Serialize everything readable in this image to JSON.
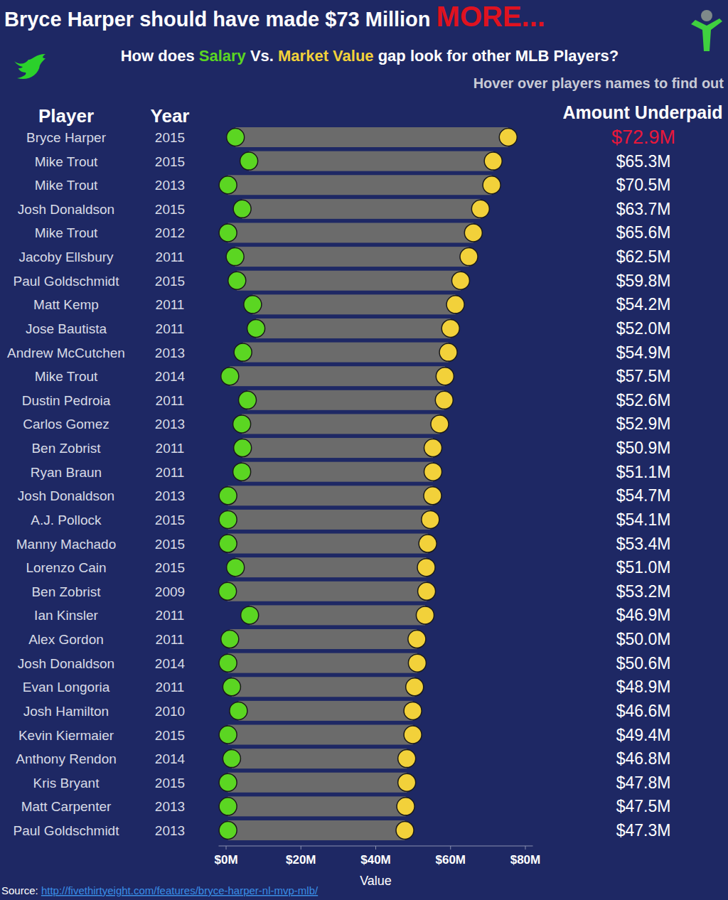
{
  "chart_data": {
    "type": "dumbbell",
    "orientation": "horizontal",
    "title": "Bryce Harper should have made $73 Million MORE...",
    "subtitle": "How does Salary Vs. Market Value gap look for other MLB Players?",
    "note": "Hover over players names to find out",
    "player_header": "Player",
    "year_header": "Year",
    "underpaid_header": "Amount Underpaid",
    "x_label": "Value",
    "source": "Source:",
    "source_url": "http://fivethirtyeight.com/features/bryce-harper-nl-mvp-mlb/",
    "categories": [
      "Bryce Harper",
      "Mike Trout",
      "Mike Trout",
      "Josh Donaldson",
      "Mike Trout",
      "Jacoby Ellsbury",
      "Paul Goldschmidt",
      "Matt Kemp",
      "Jose Bautista",
      "Andrew McCutchen",
      "Mike Trout",
      "Dustin Pedroia",
      "Carlos Gomez",
      "Ben Zobrist",
      "Ryan Braun",
      "Josh Donaldson",
      "A.J. Pollock",
      "Manny Machado",
      "Lorenzo Cain",
      "Ben Zobrist",
      "Ian Kinsler",
      "Alex Gordon",
      "Josh Donaldson",
      "Evan Longoria",
      "Josh Hamilton",
      "Kevin Kiermaier",
      "Anthony Rendon",
      "Kris Bryant",
      "Matt Carpenter",
      "Paul Goldschmidt"
    ],
    "years": [
      2015,
      2015,
      2013,
      2015,
      2012,
      2011,
      2015,
      2011,
      2011,
      2013,
      2014,
      2011,
      2013,
      2011,
      2011,
      2013,
      2015,
      2015,
      2015,
      2009,
      2011,
      2011,
      2014,
      2011,
      2010,
      2015,
      2014,
      2015,
      2013,
      2013
    ],
    "series": [
      {
        "name": "Salary",
        "color": "#5bd622",
        "values": [
          2.5,
          6.1,
          0.5,
          4.3,
          0.5,
          2.4,
          2.9,
          7.1,
          8.0,
          4.5,
          1.0,
          5.7,
          4.2,
          4.4,
          4.2,
          0.5,
          0.5,
          0.5,
          2.5,
          0.4,
          6.3,
          1.0,
          0.5,
          1.5,
          3.3,
          0.5,
          1.5,
          0.5,
          0.5,
          0.5
        ]
      },
      {
        "name": "Market Value",
        "color": "#f2d13a",
        "values": [
          75.4,
          71.4,
          71.0,
          68.0,
          66.1,
          64.9,
          62.7,
          61.3,
          60.0,
          59.4,
          58.5,
          58.3,
          57.1,
          55.3,
          55.3,
          55.2,
          54.6,
          53.9,
          53.5,
          53.6,
          53.2,
          51.0,
          51.1,
          50.4,
          49.9,
          49.9,
          48.3,
          48.3,
          48.0,
          47.8
        ]
      }
    ],
    "underpaid_labels": [
      "$72.9M",
      "$65.3M",
      "$70.5M",
      "$63.7M",
      "$65.6M",
      "$62.5M",
      "$59.8M",
      "$54.2M",
      "$52.0M",
      "$54.9M",
      "$57.5M",
      "$52.6M",
      "$52.9M",
      "$50.9M",
      "$51.1M",
      "$54.7M",
      "$54.1M",
      "$53.4M",
      "$51.0M",
      "$53.2M",
      "$46.9M",
      "$50.0M",
      "$50.6M",
      "$48.9M",
      "$46.6M",
      "$49.4M",
      "$46.8M",
      "$47.8M",
      "$47.5M",
      "$47.3M"
    ],
    "xlim": [
      -2,
      82
    ],
    "xticks": [
      {
        "value": 0,
        "label": "$0M"
      },
      {
        "value": 20,
        "label": "$20M"
      },
      {
        "value": 40,
        "label": "$40M"
      },
      {
        "value": 60,
        "label": "$60M"
      },
      {
        "value": 80,
        "label": "$80M"
      }
    ],
    "grid": false
  }
}
